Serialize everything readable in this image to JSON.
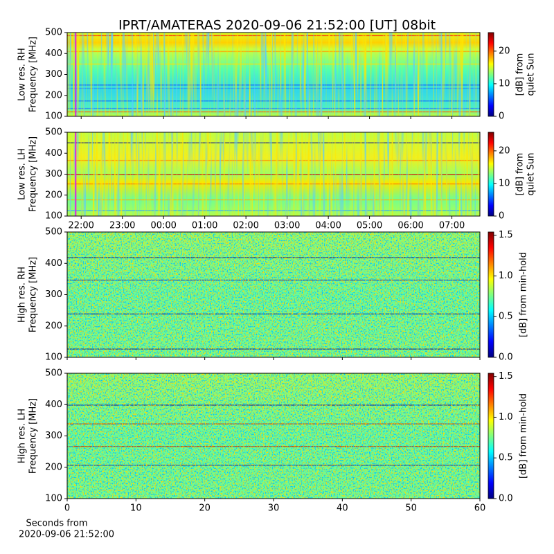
{
  "title": "IPRT/AMATERAS 2020-09-06 21:52:00 [UT]   08bit",
  "x_label": [
    "Seconds from",
    "2020-09-06 21:52:00"
  ],
  "chart_data": [
    {
      "type": "heatmap",
      "ylabel": [
        "Low res. RH",
        "Frequency [MHz]"
      ],
      "ylim": [
        100,
        500
      ],
      "yticks": [
        100,
        200,
        300,
        400,
        500
      ],
      "xlim": [
        21.66,
        31.68
      ],
      "xticks": [
        22,
        23,
        24,
        25,
        26,
        27,
        28,
        29,
        30,
        31
      ],
      "show_xtick_labels": false,
      "marker_x": 21.867,
      "marker_color": "#e020e0",
      "colormap": "jet",
      "clabel": [
        "[dB] from",
        "quiet Sun"
      ],
      "clim": [
        0,
        25.7
      ],
      "cticks": [
        0,
        10,
        20
      ]
    },
    {
      "type": "heatmap",
      "ylabel": [
        "Low res. LH",
        "Frequency [MHz]"
      ],
      "ylim": [
        100,
        500
      ],
      "yticks": [
        100,
        200,
        300,
        400,
        500
      ],
      "xlim": [
        21.66,
        31.68
      ],
      "xticks": [
        {
          "value": 22,
          "label": "22:00"
        },
        {
          "value": 23,
          "label": "23:00"
        },
        {
          "value": 24,
          "label": "00:00"
        },
        {
          "value": 25,
          "label": "01:00"
        },
        {
          "value": 26,
          "label": "02:00"
        },
        {
          "value": 27,
          "label": "03:00"
        },
        {
          "value": 28,
          "label": "04:00"
        },
        {
          "value": 29,
          "label": "05:00"
        },
        {
          "value": 30,
          "label": "06:00"
        },
        {
          "value": 31,
          "label": "07:00"
        }
      ],
      "show_xtick_labels": true,
      "marker_x": 21.867,
      "marker_color": "#e020e0",
      "colormap": "jet",
      "clabel": [
        "[dB] from",
        "quiet Sun"
      ],
      "clim": [
        0,
        25.7
      ],
      "cticks": [
        0,
        10,
        20
      ]
    },
    {
      "type": "heatmap",
      "ylabel": [
        "High res. RH",
        "Frequency [MHz]"
      ],
      "ylim": [
        100,
        500
      ],
      "yticks": [
        100,
        200,
        300,
        400,
        500
      ],
      "xlim": [
        0,
        60
      ],
      "xticks": [
        0,
        10,
        20,
        30,
        40,
        50,
        60
      ],
      "show_xtick_labels": false,
      "colormap": "jet",
      "clabel": [
        "[dB] from min-hold"
      ],
      "clim": [
        0,
        1.54
      ],
      "cticks": [
        {
          "value": 0,
          "label": "0.0"
        },
        {
          "value": 0.5,
          "label": "0.5"
        },
        {
          "value": 1,
          "label": "1.0"
        },
        {
          "value": 1.5,
          "label": "1.5"
        }
      ]
    },
    {
      "type": "heatmap",
      "ylabel": [
        "High res. LH",
        "Frequency [MHz]"
      ],
      "ylim": [
        100,
        500
      ],
      "yticks": [
        100,
        200,
        300,
        400,
        500
      ],
      "xlim": [
        0,
        60
      ],
      "xticks": [
        0,
        10,
        20,
        30,
        40,
        50,
        60
      ],
      "show_xtick_labels": true,
      "colormap": "jet",
      "clabel": [
        "[dB] from min-hold"
      ],
      "clim": [
        0,
        1.54
      ],
      "cticks": [
        {
          "value": 0,
          "label": "0.0"
        },
        {
          "value": 0.5,
          "label": "0.5"
        },
        {
          "value": 1,
          "label": "1.0"
        },
        {
          "value": 1.5,
          "label": "1.5"
        }
      ]
    }
  ]
}
